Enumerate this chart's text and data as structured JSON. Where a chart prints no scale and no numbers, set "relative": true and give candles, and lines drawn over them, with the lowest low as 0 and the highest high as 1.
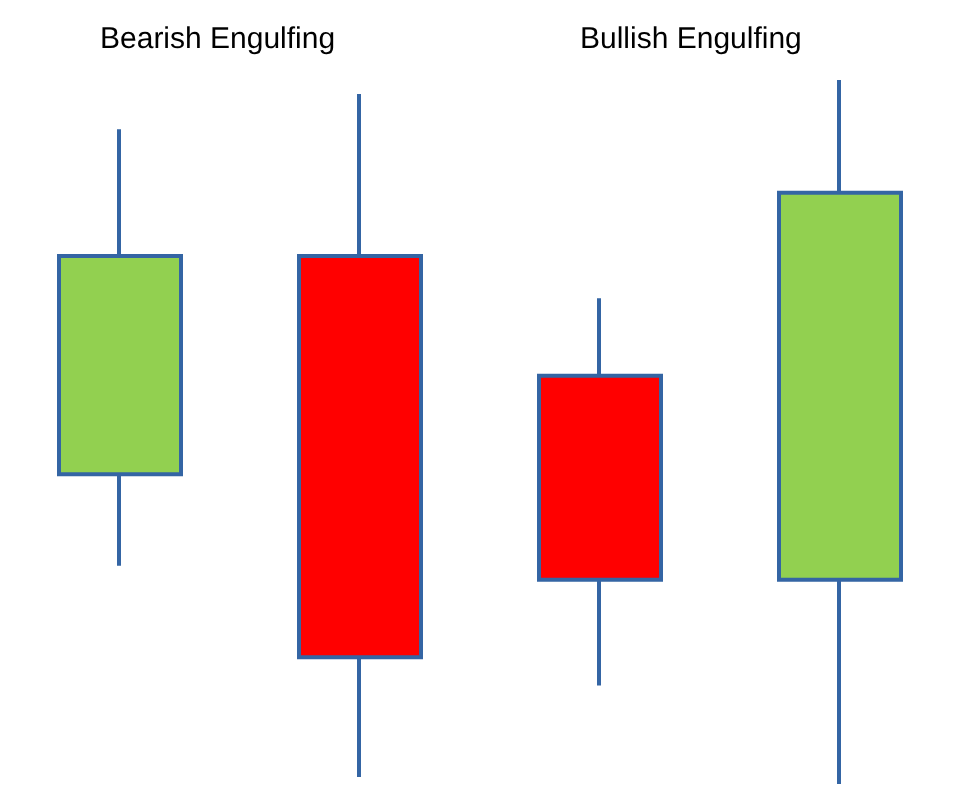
{
  "chart_data": {
    "type": "candlestick",
    "categories": [
      null,
      null,
      null,
      null
    ],
    "relative": true,
    "annotations": [
      "Bearish Engulfing",
      "Bullish Engulfing"
    ],
    "ohlc": [
      [
        0.44,
        0.93,
        0.31,
        0.75
      ],
      [
        0.75,
        0.98,
        0.01,
        0.18
      ],
      [
        0.58,
        0.69,
        0.14,
        0.29
      ],
      [
        0.29,
        1,
        0,
        0.84
      ]
    ],
    "colors": [
      "#92d050",
      "#ff0000",
      "#ff0000",
      "#92d050"
    ]
  }
}
